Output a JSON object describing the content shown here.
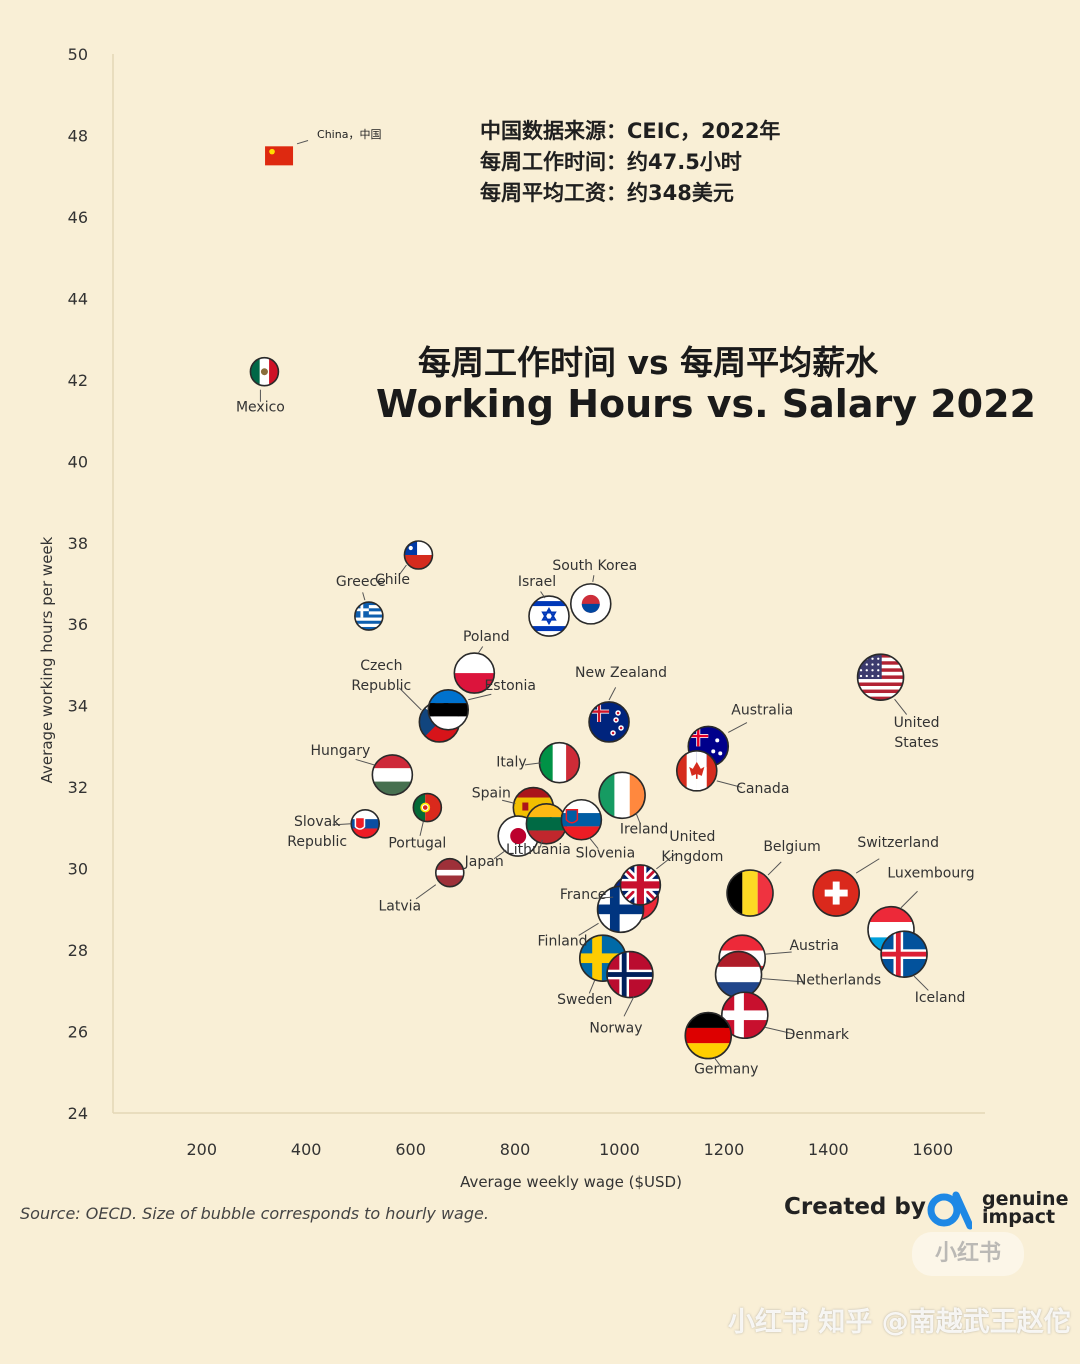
{
  "info_lines": [
    "中国数据来源：CEIC，2022年",
    "每周工作时间：约47.5小时",
    "每周平均工资：约348美元"
  ],
  "title_cn": "每周工作时间 vs 每周平均薪水",
  "title_en": "Working Hours vs. Salary 2022",
  "source": "Source: OECD. Size of bubble corresponds to hourly wage.",
  "created_by": "Created by",
  "brand": {
    "line1": "genuine",
    "line2": "impact"
  },
  "watermark_1": "小红书",
  "watermark_2": "小红书  知乎 @南越武王赵佗",
  "chart_data": {
    "type": "scatter",
    "title": "Working Hours vs. Salary 2022",
    "xlabel": "Average weekly wage ($USD)",
    "ylabel": "Average working hours per week",
    "x_ticks": [
      200,
      400,
      600,
      800,
      1000,
      1200,
      1400,
      1600
    ],
    "y_ticks": [
      50,
      48,
      46,
      44,
      42,
      40,
      38,
      36,
      34,
      32,
      30,
      28,
      26,
      24
    ],
    "xlim": [
      30,
      1700
    ],
    "ylim": [
      24,
      50
    ],
    "points": [
      {
        "label": "China，中国",
        "x": 348,
        "y": 47.5,
        "flag": "china",
        "size": "small"
      },
      {
        "label": "Mexico",
        "x": 320,
        "y": 42.2,
        "flag": "mexico",
        "size": "small"
      },
      {
        "label": "Greece",
        "x": 520,
        "y": 36.2,
        "flag": "greece",
        "size": "small"
      },
      {
        "label": "Chile",
        "x": 615,
        "y": 37.7,
        "flag": "chile",
        "size": "small"
      },
      {
        "label": "Israel",
        "x": 865,
        "y": 36.2,
        "flag": "israel",
        "size": "medium"
      },
      {
        "label": "South Korea",
        "x": 945,
        "y": 36.5,
        "flag": "south-korea",
        "size": "medium"
      },
      {
        "label": "Poland",
        "x": 722,
        "y": 34.8,
        "flag": "poland",
        "size": "medium"
      },
      {
        "label": "Czech Republic",
        "x": 655,
        "y": 33.6,
        "flag": "czech",
        "size": "medium"
      },
      {
        "label": "Estonia",
        "x": 672,
        "y": 33.9,
        "flag": "estonia",
        "size": "medium"
      },
      {
        "label": "New Zealand",
        "x": 980,
        "y": 33.6,
        "flag": "new-zealand",
        "size": "medium"
      },
      {
        "label": "Australia",
        "x": 1170,
        "y": 33.0,
        "flag": "australia",
        "size": "medium"
      },
      {
        "label": "Canada",
        "x": 1148,
        "y": 32.4,
        "flag": "canada",
        "size": "medium"
      },
      {
        "label": "United States",
        "x": 1500,
        "y": 34.7,
        "flag": "usa",
        "size": "large"
      },
      {
        "label": "Hungary",
        "x": 565,
        "y": 32.3,
        "flag": "hungary",
        "size": "medium"
      },
      {
        "label": "Italy",
        "x": 885,
        "y": 32.6,
        "flag": "italy",
        "size": "medium"
      },
      {
        "label": "Spain",
        "x": 835,
        "y": 31.5,
        "flag": "spain",
        "size": "medium"
      },
      {
        "label": "Ireland",
        "x": 1005,
        "y": 31.8,
        "flag": "ireland",
        "size": "large"
      },
      {
        "label": "Slovak Republic",
        "x": 513,
        "y": 31.1,
        "flag": "slovakia",
        "size": "small"
      },
      {
        "label": "Portugal",
        "x": 632,
        "y": 31.5,
        "flag": "portugal",
        "size": "small"
      },
      {
        "label": "Japan",
        "x": 806,
        "y": 30.8,
        "flag": "japan",
        "size": "medium"
      },
      {
        "label": "Lithuania",
        "x": 860,
        "y": 31.1,
        "flag": "lithuania",
        "size": "medium"
      },
      {
        "label": "Slovenia",
        "x": 927,
        "y": 31.2,
        "flag": "slovenia",
        "size": "medium"
      },
      {
        "label": "Latvia",
        "x": 675,
        "y": 29.9,
        "flag": "latvia",
        "size": "small"
      },
      {
        "label": "United Kingdom",
        "x": 1040,
        "y": 29.6,
        "flag": "uk",
        "size": "medium"
      },
      {
        "label": "France",
        "x": 1030,
        "y": 29.3,
        "flag": "france",
        "size": "large"
      },
      {
        "label": "Finland",
        "x": 1002,
        "y": 29.0,
        "flag": "finland",
        "size": "large"
      },
      {
        "label": "Belgium",
        "x": 1250,
        "y": 29.4,
        "flag": "belgium",
        "size": "large"
      },
      {
        "label": "Switzerland",
        "x": 1415,
        "y": 29.4,
        "flag": "switzerland",
        "size": "large"
      },
      {
        "label": "Luxembourg",
        "x": 1520,
        "y": 28.5,
        "flag": "luxembourg",
        "size": "large"
      },
      {
        "label": "Iceland",
        "x": 1545,
        "y": 27.9,
        "flag": "iceland",
        "size": "large"
      },
      {
        "label": "Austria",
        "x": 1235,
        "y": 27.8,
        "flag": "austria",
        "size": "large"
      },
      {
        "label": "Netherlands",
        "x": 1228,
        "y": 27.4,
        "flag": "netherlands",
        "size": "large"
      },
      {
        "label": "Sweden",
        "x": 968,
        "y": 27.8,
        "flag": "sweden",
        "size": "large"
      },
      {
        "label": "Norway",
        "x": 1020,
        "y": 27.4,
        "flag": "norway",
        "size": "large"
      },
      {
        "label": "Denmark",
        "x": 1240,
        "y": 26.4,
        "flag": "denmark",
        "size": "large"
      },
      {
        "label": "Germany",
        "x": 1170,
        "y": 25.9,
        "flag": "germany",
        "size": "large"
      }
    ]
  }
}
